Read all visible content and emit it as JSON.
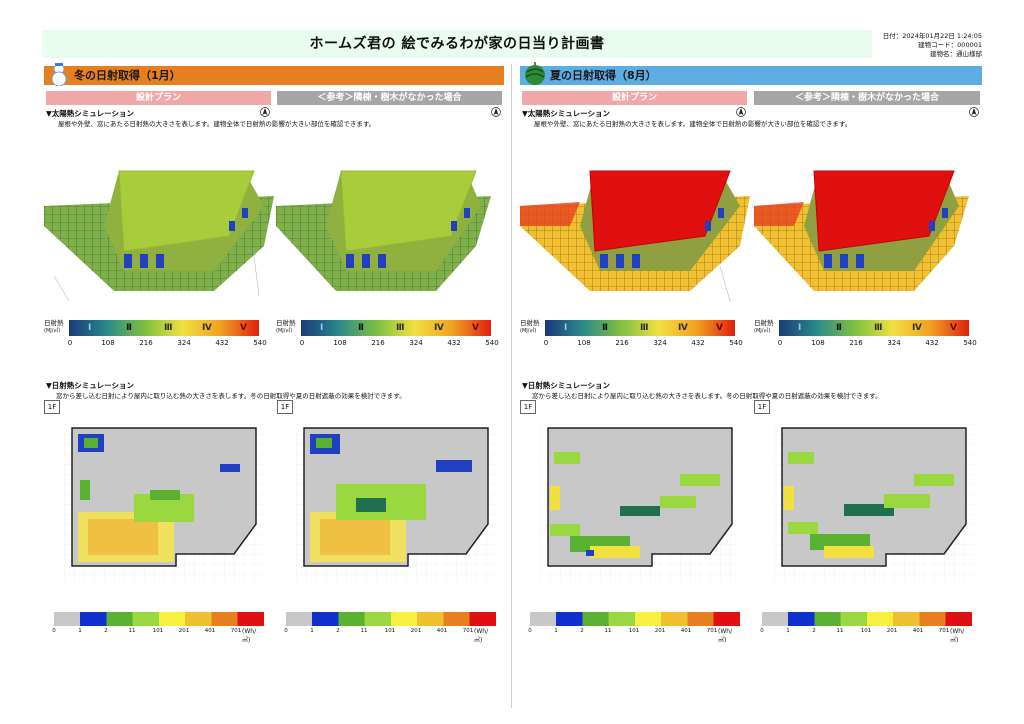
{
  "header": {
    "title": "ホームズ君の 絵でみるわが家の日当り計画書",
    "date": "日付：2024年01月22日  1:24:05",
    "building_code": "建物コード：000001",
    "building_name": "建物名：通山様邸"
  },
  "winter": {
    "header": "冬の日射取得（1月）",
    "plan_label": "設計プラン",
    "ref_label": "＜参考＞隣棟・樹木がなかった場合",
    "solar_title": "▼太陽熱シミュレーション",
    "solar_desc": "屋根や外壁、窓にあたる日射熱の大きさを表します。建物全体で日射熱の影響が大きい部位を確認できます。",
    "insolation_title": "▼日射熱シミュレーション",
    "insolation_desc": "窓から差し込む日射により屋内に取り込む熱の大きさを表します。冬の日射取得や夏の日射遮蔽の効果を検討できます。",
    "floor": "1F",
    "roof_color": "#a8cc3a",
    "ground_color": "#7fb04a"
  },
  "summer": {
    "header": "夏の日射取得（8月）",
    "plan_label": "設計プラン",
    "ref_label": "＜参考＞隣棟・樹木がなかった場合",
    "solar_title": "▼太陽熱シミュレーション",
    "solar_desc": "屋根や外壁、窓にあたる日射熱の大きさを表します。建物全体で日射熱の影響が大きい部位を確認できます。",
    "insolation_title": "▼日射熱シミュレーション",
    "insolation_desc": "窓から差し込む日射により屋内に取り込む熱の大きさを表します。冬の日射取得や夏の日射遮蔽の効果を検討できます。",
    "floor": "1F",
    "roof_color": "#e01010",
    "ground_color": "#f0a020"
  },
  "solar_legend": {
    "label_top": "日射熱",
    "label_unit": "(MJ/㎡)",
    "romans": [
      "Ⅰ",
      "Ⅱ",
      "Ⅲ",
      "Ⅳ",
      "Ⅴ"
    ],
    "ticks": [
      "0",
      "108",
      "216",
      "324",
      "432",
      "540"
    ],
    "colors": [
      "#1a3a7a",
      "#2a8a8a",
      "#7fc040",
      "#f0e040",
      "#f0a020",
      "#e02010"
    ]
  },
  "heat_legend": {
    "ticks": [
      "0",
      "1",
      "2",
      "11",
      "101",
      "201",
      "401",
      "701"
    ],
    "unit": "(Wh/㎡)",
    "colors": [
      "#c8c8c8",
      "#1030d0",
      "#5ab030",
      "#9ad840",
      "#f8f040",
      "#f0c030",
      "#e88020",
      "#e01010"
    ]
  }
}
